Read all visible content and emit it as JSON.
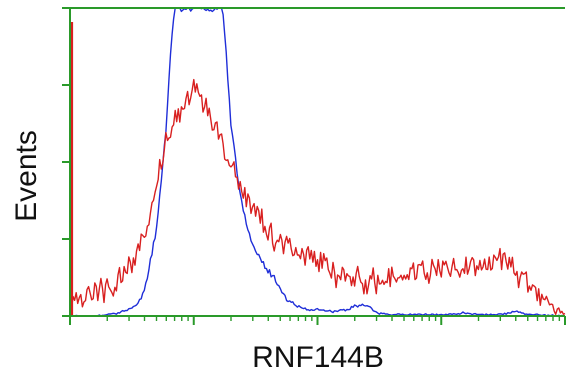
{
  "chart_data": {
    "type": "line",
    "title": "",
    "xlabel": "RNF144B",
    "ylabel": "Events",
    "x_scale": "log",
    "xlim": [
      1,
      10000
    ],
    "ylim": [
      0,
      100
    ],
    "grid": false,
    "legend": "none",
    "frame_color": "#2a9a2a",
    "series": [
      {
        "color": "#1f2ed8",
        "points": [
          [
            1.0,
            0
          ],
          [
            1.5,
            0
          ],
          [
            2.0,
            0.5
          ],
          [
            2.5,
            1
          ],
          [
            3.0,
            2
          ],
          [
            3.5,
            4
          ],
          [
            4.0,
            8
          ],
          [
            5.0,
            28
          ],
          [
            6.0,
            62
          ],
          [
            6.6,
            90
          ],
          [
            7.0,
            100
          ],
          [
            9.0,
            100
          ],
          [
            12.0,
            100
          ],
          [
            17.0,
            100
          ],
          [
            18.0,
            90
          ],
          [
            20.0,
            62
          ],
          [
            24.0,
            38
          ],
          [
            28.0,
            26
          ],
          [
            33.0,
            20
          ],
          [
            40.0,
            15
          ],
          [
            48.0,
            10
          ],
          [
            58.0,
            5
          ],
          [
            70.0,
            3
          ],
          [
            85.0,
            2
          ],
          [
            100,
            2
          ],
          [
            130,
            1.5
          ],
          [
            170,
            2
          ],
          [
            200,
            3
          ],
          [
            230,
            4
          ],
          [
            260,
            3
          ],
          [
            300,
            1
          ],
          [
            400,
            0.5
          ],
          [
            600,
            0.5
          ],
          [
            900,
            0.5
          ],
          [
            1200,
            0.5
          ],
          [
            1500,
            1
          ],
          [
            2000,
            0.5
          ],
          [
            3000,
            0.5
          ],
          [
            4000,
            1.5
          ],
          [
            5000,
            0.5
          ],
          [
            10000,
            0
          ]
        ]
      },
      {
        "color": "#d82020",
        "points": [
          [
            1.0,
            3
          ],
          [
            1.2,
            6
          ],
          [
            1.5,
            7
          ],
          [
            2.0,
            9
          ],
          [
            2.5,
            12
          ],
          [
            3.0,
            16
          ],
          [
            3.5,
            22
          ],
          [
            4.0,
            27
          ],
          [
            4.5,
            33
          ],
          [
            5.0,
            40
          ],
          [
            5.5,
            50
          ],
          [
            6.0,
            58
          ],
          [
            7.0,
            63
          ],
          [
            8.0,
            66
          ],
          [
            9.0,
            70
          ],
          [
            9.5,
            73
          ],
          [
            10.0,
            74
          ],
          [
            11.0,
            72
          ],
          [
            12.0,
            68
          ],
          [
            14.0,
            64
          ],
          [
            16.0,
            59
          ],
          [
            18.0,
            53
          ],
          [
            20.0,
            48
          ],
          [
            22.0,
            44
          ],
          [
            25.0,
            40
          ],
          [
            30.0,
            35
          ],
          [
            35.0,
            31
          ],
          [
            40.0,
            27
          ],
          [
            50.0,
            24
          ],
          [
            60.0,
            22
          ],
          [
            80.0,
            19
          ],
          [
            100,
            17
          ],
          [
            150,
            13
          ],
          [
            200,
            12
          ],
          [
            300,
            11
          ],
          [
            400,
            12
          ],
          [
            600,
            14
          ],
          [
            800,
            15
          ],
          [
            1200,
            16
          ],
          [
            1800,
            16
          ],
          [
            2500,
            17
          ],
          [
            3300,
            18
          ],
          [
            4000,
            14
          ],
          [
            5000,
            12
          ],
          [
            6000,
            8
          ],
          [
            8000,
            3
          ],
          [
            10000,
            1
          ]
        ]
      }
    ]
  }
}
